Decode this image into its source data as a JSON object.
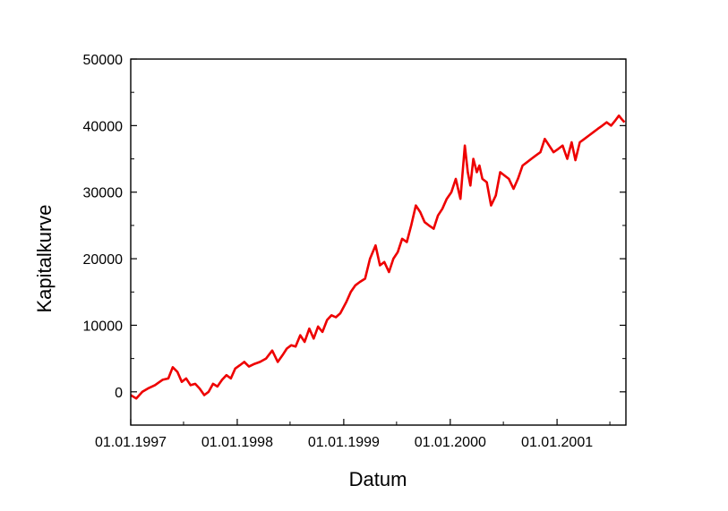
{
  "chart_data": {
    "type": "line",
    "title": "",
    "xlabel": "Datum",
    "ylabel": "Kapitalkurve",
    "x_is_date": true,
    "xlim": [
      "1997-01-01",
      "2001-08-25"
    ],
    "ylim": [
      -5000,
      50000
    ],
    "y_ticks": [
      0,
      10000,
      20000,
      30000,
      40000,
      50000
    ],
    "y_tick_labels": [
      "0",
      "10000",
      "20000",
      "30000",
      "40000",
      "50000"
    ],
    "x_ticks": [
      "1997-01-01",
      "1998-01-01",
      "1999-01-01",
      "2000-01-01",
      "2001-01-01"
    ],
    "x_tick_labels": [
      "01.01.1997",
      "01.01.1998",
      "01.01.1999",
      "01.01.2000",
      "01.01.2001"
    ],
    "grid": false,
    "legend": "none",
    "color": "#ee0000",
    "series": [
      {
        "x": [
          "1997-01-01",
          "1997-01-20",
          "1997-02-10",
          "1997-03-01",
          "1997-03-25",
          "1997-04-20",
          "1997-05-10",
          "1997-05-25",
          "1997-06-10",
          "1997-06-25",
          "1997-07-10",
          "1997-07-25",
          "1997-08-10",
          "1997-08-25",
          "1997-09-10",
          "1997-09-25",
          "1997-10-10",
          "1997-10-25",
          "1997-11-10",
          "1997-11-25",
          "1997-12-10",
          "1997-12-25",
          "1998-01-10",
          "1998-01-25",
          "1998-02-10",
          "1998-03-01",
          "1998-03-20",
          "1998-04-10",
          "1998-05-01",
          "1998-05-20",
          "1998-06-05",
          "1998-06-20",
          "1998-07-05",
          "1998-07-20",
          "1998-08-05",
          "1998-08-20",
          "1998-09-05",
          "1998-09-20",
          "1998-10-05",
          "1998-10-20",
          "1998-11-05",
          "1998-11-20",
          "1998-12-05",
          "1998-12-20",
          "1999-01-10",
          "1999-01-25",
          "1999-02-10",
          "1999-02-25",
          "1999-03-15",
          "1999-04-01",
          "1999-04-20",
          "1999-05-05",
          "1999-05-20",
          "1999-06-05",
          "1999-06-20",
          "1999-07-05",
          "1999-07-20",
          "1999-08-05",
          "1999-08-20",
          "1999-09-05",
          "1999-09-20",
          "1999-10-05",
          "1999-10-20",
          "1999-11-05",
          "1999-11-20",
          "1999-12-05",
          "1999-12-20",
          "2000-01-05",
          "2000-01-20",
          "2000-02-05",
          "2000-02-20",
          "2000-03-01",
          "2000-03-10",
          "2000-03-20",
          "2000-04-01",
          "2000-04-10",
          "2000-04-20",
          "2000-05-05",
          "2000-05-20",
          "2000-06-05",
          "2000-06-20",
          "2000-07-05",
          "2000-07-20",
          "2000-08-05",
          "2000-08-20",
          "2000-09-05",
          "2000-09-20",
          "2000-10-05",
          "2000-10-20",
          "2000-11-05",
          "2000-11-20",
          "2000-12-05",
          "2000-12-20",
          "2001-01-05",
          "2001-01-20",
          "2001-02-05",
          "2001-02-20",
          "2001-03-05",
          "2001-03-20",
          "2001-04-05",
          "2001-04-20",
          "2001-05-05",
          "2001-05-20",
          "2001-06-05",
          "2001-06-20",
          "2001-07-05",
          "2001-07-20",
          "2001-08-01",
          "2001-08-10",
          "2001-08-20"
        ],
        "y": [
          -500,
          -1000,
          0,
          500,
          1000,
          1800,
          2000,
          3700,
          3000,
          1500,
          2000,
          1000,
          1200,
          500,
          -500,
          0,
          1200,
          800,
          1800,
          2500,
          2000,
          3500,
          4000,
          4500,
          3800,
          4200,
          4500,
          5000,
          6200,
          4500,
          5500,
          6500,
          7000,
          6800,
          8500,
          7500,
          9500,
          8000,
          9800,
          9000,
          10800,
          11500,
          11200,
          11800,
          13500,
          15000,
          16000,
          16500,
          17000,
          20000,
          22000,
          19000,
          19500,
          18000,
          20000,
          21000,
          23000,
          22500,
          25000,
          28000,
          27000,
          25500,
          25000,
          24500,
          26500,
          27500,
          29000,
          30000,
          32000,
          29000,
          37000,
          33000,
          31000,
          35000,
          33000,
          34000,
          32000,
          31500,
          28000,
          29500,
          33000,
          32500,
          32000,
          30500,
          32000,
          34000,
          34500,
          35000,
          35500,
          36000,
          38000,
          37000,
          36000,
          36500,
          37000,
          35000,
          37500,
          34800,
          37500,
          38000,
          38500,
          39000,
          39500,
          40000,
          40500,
          40000,
          40800,
          41500,
          41000,
          40500
        ]
      }
    ]
  }
}
